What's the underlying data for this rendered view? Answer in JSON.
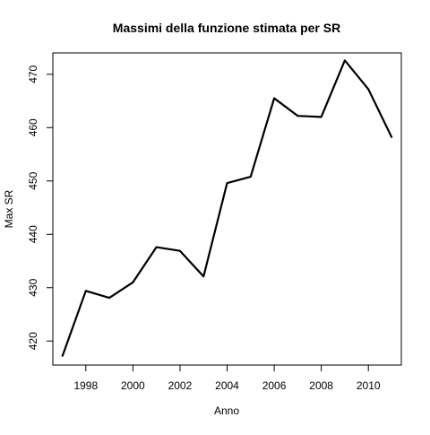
{
  "chart_data": {
    "type": "line",
    "title": "Massimi della funzione stimata per SR",
    "xlabel": "Anno",
    "ylabel": "Max SR",
    "xlim": [
      1996.6,
      2011.4
    ],
    "ylim": [
      415.5,
      474.0
    ],
    "x_ticks": [
      1998,
      2000,
      2002,
      2004,
      2006,
      2008,
      2010
    ],
    "y_ticks": [
      420,
      430,
      440,
      450,
      460,
      470
    ],
    "grid": false,
    "legend": "none",
    "line_color": "#000000",
    "series": [
      {
        "x": [
          1997,
          1998,
          1999,
          2000,
          2001,
          2002,
          2003,
          2004,
          2005,
          2006,
          2007,
          2008,
          2009,
          2010,
          2011
        ],
        "values": [
          417.1,
          429.4,
          428.1,
          431.0,
          437.6,
          436.9,
          432.1,
          449.6,
          450.8,
          465.5,
          462.2,
          462.0,
          472.6,
          467.2,
          458.1
        ]
      }
    ]
  }
}
